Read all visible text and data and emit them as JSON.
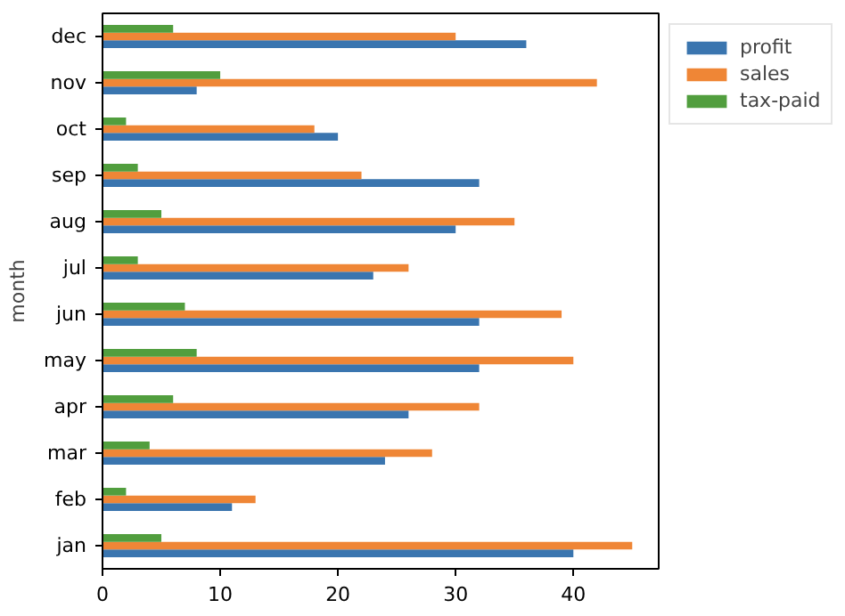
{
  "chart_data": {
    "type": "bar",
    "orientation": "horizontal",
    "ylabel": "month",
    "categories": [
      "dec",
      "nov",
      "oct",
      "sep",
      "aug",
      "jul",
      "jun",
      "may",
      "apr",
      "mar",
      "feb",
      "jan"
    ],
    "series": [
      {
        "name": "profit",
        "color": "#3a75af",
        "values": [
          36,
          8,
          20,
          32,
          30,
          23,
          32,
          32,
          26,
          24,
          11,
          40
        ]
      },
      {
        "name": "sales",
        "color": "#ef8636",
        "values": [
          30,
          42,
          18,
          22,
          35,
          26,
          39,
          40,
          32,
          28,
          13,
          45
        ]
      },
      {
        "name": "tax-paid",
        "color": "#519e3e",
        "values": [
          6,
          10,
          2,
          3,
          5,
          3,
          7,
          8,
          6,
          4,
          2,
          5
        ]
      }
    ],
    "xlim": [
      0,
      47.25
    ],
    "xticks": [
      0,
      10,
      20,
      30,
      40
    ],
    "grid": false,
    "legend": "top right"
  }
}
